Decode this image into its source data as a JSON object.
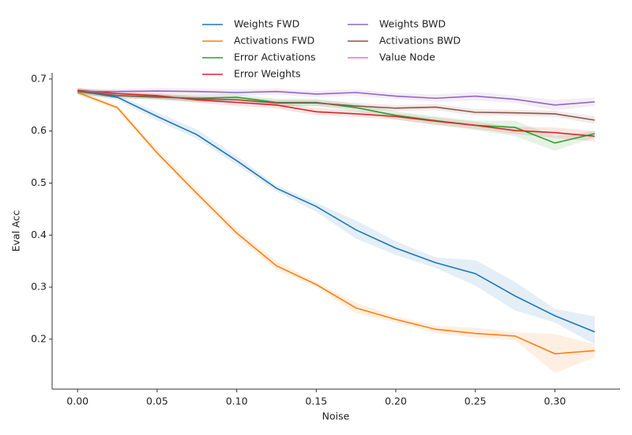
{
  "chart_data": {
    "type": "line",
    "xlabel": "Noise",
    "ylabel": "Eval Acc",
    "x": [
      0,
      0.025,
      0.05,
      0.075,
      0.1,
      0.125,
      0.15,
      0.175,
      0.2,
      0.225,
      0.25,
      0.275,
      0.3,
      0.325
    ],
    "xlim": [
      -0.016,
      0.341
    ],
    "ylim": [
      0.104,
      0.712
    ],
    "xticks": [
      {
        "value": 0,
        "label": "0.00"
      },
      {
        "value": 0.05,
        "label": "0.05"
      },
      {
        "value": 0.1,
        "label": "0.10"
      },
      {
        "value": 0.15,
        "label": "0.15"
      },
      {
        "value": 0.2,
        "label": "0.20"
      },
      {
        "value": 0.25,
        "label": "0.25"
      },
      {
        "value": 0.3,
        "label": "0.30"
      }
    ],
    "yticks": [
      0.2,
      0.3,
      0.4,
      0.5,
      0.6,
      0.7
    ],
    "grid": false,
    "legend": "upper center",
    "legend_columns": 2,
    "series": [
      {
        "name": "Weights FWD",
        "color": "#1f77b4",
        "values": [
          0.677,
          0.665,
          0.628,
          0.593,
          0.543,
          0.49,
          0.455,
          0.41,
          0.375,
          0.347,
          0.326,
          0.283,
          0.245,
          0.214
        ],
        "lower": [
          0.672,
          0.66,
          0.62,
          0.585,
          0.535,
          0.484,
          0.445,
          0.393,
          0.362,
          0.337,
          0.303,
          0.255,
          0.232,
          0.19
        ],
        "upper": [
          0.682,
          0.67,
          0.636,
          0.603,
          0.552,
          0.496,
          0.462,
          0.428,
          0.388,
          0.357,
          0.352,
          0.31,
          0.258,
          0.244
        ]
      },
      {
        "name": "Activations FWD",
        "color": "#ff7f0e",
        "values": [
          0.674,
          0.645,
          0.558,
          0.48,
          0.404,
          0.341,
          0.305,
          0.26,
          0.238,
          0.219,
          0.211,
          0.206,
          0.172,
          0.178
        ],
        "lower": [
          0.67,
          0.64,
          0.552,
          0.474,
          0.397,
          0.333,
          0.3,
          0.25,
          0.232,
          0.212,
          0.203,
          0.198,
          0.135,
          0.165
        ],
        "upper": [
          0.678,
          0.65,
          0.565,
          0.488,
          0.412,
          0.35,
          0.31,
          0.27,
          0.244,
          0.226,
          0.222,
          0.213,
          0.21,
          0.19
        ]
      },
      {
        "name": "Error Activations",
        "color": "#2ca02c",
        "values": [
          0.676,
          0.668,
          0.665,
          0.663,
          0.665,
          0.655,
          0.655,
          0.645,
          0.63,
          0.62,
          0.611,
          0.607,
          0.577,
          0.595
        ],
        "lower": [
          0.67,
          0.663,
          0.66,
          0.657,
          0.66,
          0.648,
          0.648,
          0.638,
          0.622,
          0.612,
          0.602,
          0.59,
          0.562,
          0.588
        ],
        "upper": [
          0.682,
          0.673,
          0.67,
          0.67,
          0.671,
          0.662,
          0.662,
          0.652,
          0.638,
          0.628,
          0.62,
          0.62,
          0.59,
          0.6
        ]
      },
      {
        "name": "Error Weights",
        "color": "#d62728",
        "values": [
          0.678,
          0.672,
          0.668,
          0.66,
          0.655,
          0.65,
          0.637,
          0.633,
          0.628,
          0.619,
          0.611,
          0.601,
          0.597,
          0.59
        ],
        "lower": [
          0.673,
          0.667,
          0.662,
          0.654,
          0.648,
          0.643,
          0.63,
          0.627,
          0.622,
          0.612,
          0.604,
          0.594,
          0.587,
          0.58
        ],
        "upper": [
          0.683,
          0.677,
          0.673,
          0.666,
          0.662,
          0.656,
          0.644,
          0.64,
          0.634,
          0.626,
          0.618,
          0.608,
          0.607,
          0.6
        ]
      },
      {
        "name": "Weights BWD",
        "color": "#9467bd",
        "values": [
          0.676,
          0.676,
          0.677,
          0.676,
          0.674,
          0.676,
          0.671,
          0.674,
          0.667,
          0.663,
          0.667,
          0.661,
          0.65,
          0.656
        ],
        "lower": [
          0.671,
          0.671,
          0.671,
          0.67,
          0.668,
          0.67,
          0.665,
          0.668,
          0.661,
          0.656,
          0.659,
          0.654,
          0.64,
          0.648
        ],
        "upper": [
          0.681,
          0.681,
          0.683,
          0.682,
          0.68,
          0.682,
          0.677,
          0.68,
          0.673,
          0.67,
          0.675,
          0.668,
          0.66,
          0.664
        ]
      },
      {
        "name": "Activations BWD",
        "color": "#8c564b",
        "values": [
          0.677,
          0.668,
          0.666,
          0.662,
          0.66,
          0.654,
          0.654,
          0.648,
          0.644,
          0.646,
          0.636,
          0.635,
          0.633,
          0.621
        ],
        "lower": [
          0.672,
          0.663,
          0.661,
          0.656,
          0.654,
          0.648,
          0.648,
          0.642,
          0.638,
          0.64,
          0.63,
          0.629,
          0.627,
          0.614
        ],
        "upper": [
          0.682,
          0.673,
          0.671,
          0.668,
          0.666,
          0.66,
          0.66,
          0.654,
          0.65,
          0.652,
          0.642,
          0.641,
          0.639,
          0.628
        ]
      },
      {
        "name": "Value Node",
        "color": "#e377c2",
        "values": [
          null,
          null,
          null,
          null,
          null,
          null,
          null,
          null,
          null,
          null,
          null,
          null,
          null,
          null
        ]
      }
    ]
  }
}
